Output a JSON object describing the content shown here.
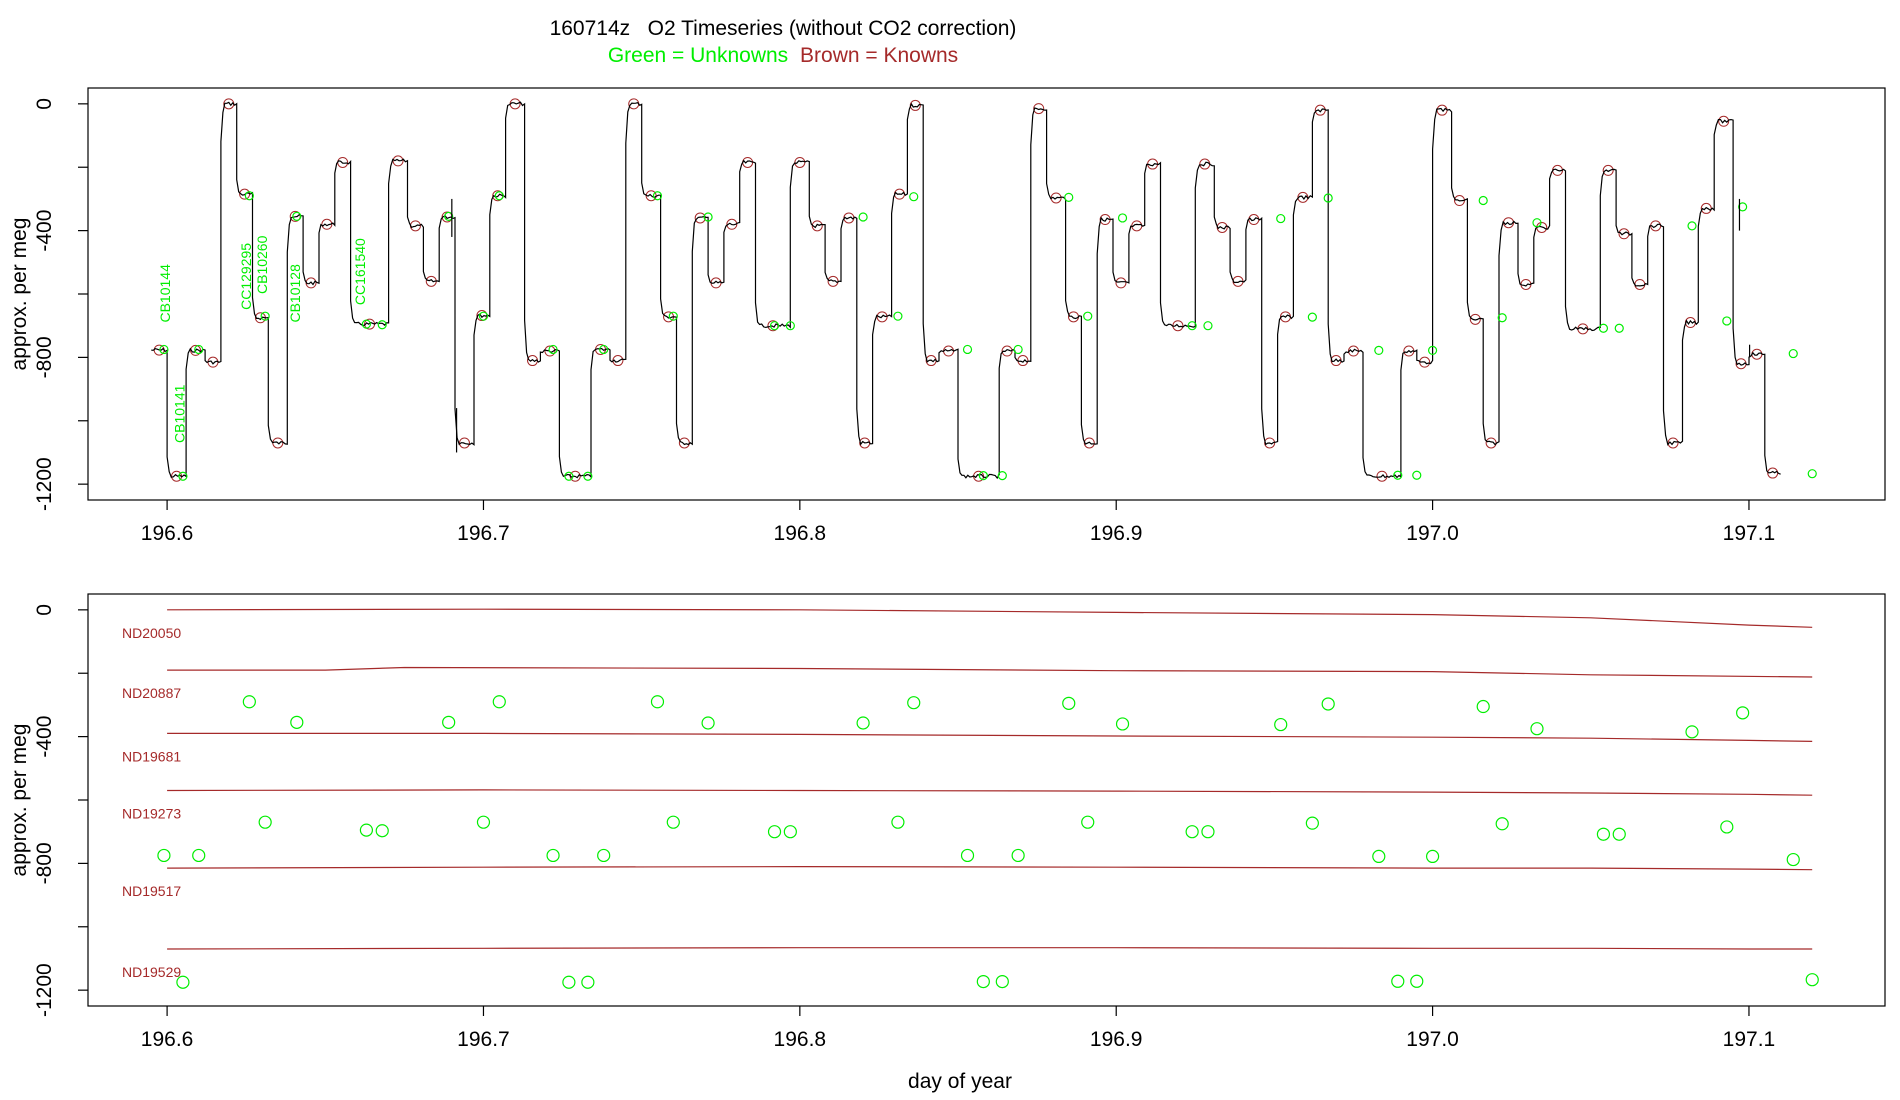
{
  "title": "160714z   O2 Timeseries (without CO2 correction)",
  "subtitle_green": "Green = Unknowns",
  "subtitle_brown": "Brown = Knowns",
  "colors": {
    "unknown": "#00ee00",
    "known": "#a52a2a",
    "trace": "#000000",
    "axis": "#000000"
  },
  "chart_data": [
    {
      "type": "line",
      "ylabel": "approx. per meg",
      "xlabel": "",
      "xlim": [
        196.575,
        197.143
      ],
      "ylim": [
        -1250,
        50
      ],
      "xticks": [
        "196.6",
        "196.7",
        "196.8",
        "196.9",
        "197.0",
        "197.1"
      ],
      "yticks": [
        "0",
        "-400",
        "-800",
        "-1200"
      ],
      "series": [
        {
          "steps": [
            [
              196.595,
              196.6,
              -777
            ],
            [
              196.6,
              196.606,
              -1175
            ],
            [
              196.606,
              196.612,
              -778
            ],
            [
              196.612,
              196.617,
              -815
            ],
            [
              196.617,
              196.622,
              0
            ],
            [
              196.622,
              196.627,
              -285
            ],
            [
              196.627,
              196.632,
              -675
            ],
            [
              196.632,
              196.638,
              -1070
            ],
            [
              196.638,
              196.643,
              -355
            ],
            [
              196.643,
              196.648,
              -565
            ],
            [
              196.648,
              196.653,
              -380
            ],
            [
              196.653,
              196.658,
              -185
            ],
            [
              196.658,
              196.67,
              -695
            ],
            [
              196.67,
              196.676,
              -180
            ],
            [
              196.676,
              196.681,
              -385
            ],
            [
              196.681,
              196.686,
              -560
            ],
            [
              196.686,
              196.691,
              -357
            ],
            [
              196.691,
              196.697,
              -1070
            ],
            [
              196.697,
              196.702,
              -668
            ],
            [
              196.702,
              196.707,
              -290
            ],
            [
              196.707,
              196.713,
              0
            ],
            [
              196.713,
              196.718,
              -810
            ],
            [
              196.718,
              196.724,
              -780
            ],
            [
              196.724,
              196.734,
              -1175
            ],
            [
              196.734,
              196.74,
              -775
            ],
            [
              196.74,
              196.745,
              -810
            ],
            [
              196.745,
              196.75,
              0
            ],
            [
              196.75,
              196.756,
              -290
            ],
            [
              196.756,
              196.761,
              -672
            ],
            [
              196.761,
              196.766,
              -1070
            ],
            [
              196.766,
              196.771,
              -360
            ],
            [
              196.771,
              196.776,
              -565
            ],
            [
              196.776,
              196.781,
              -380
            ],
            [
              196.781,
              196.786,
              -185
            ],
            [
              196.786,
              196.797,
              -700
            ],
            [
              196.797,
              196.803,
              -185
            ],
            [
              196.803,
              196.808,
              -385
            ],
            [
              196.808,
              196.813,
              -560
            ],
            [
              196.813,
              196.818,
              -360
            ],
            [
              196.818,
              196.823,
              -1070
            ],
            [
              196.823,
              196.829,
              -672
            ],
            [
              196.829,
              196.834,
              -285
            ],
            [
              196.834,
              196.839,
              -5
            ],
            [
              196.839,
              196.844,
              -810
            ],
            [
              196.844,
              196.85,
              -780
            ],
            [
              196.85,
              196.863,
              -1175
            ],
            [
              196.863,
              196.868,
              -780
            ],
            [
              196.868,
              196.873,
              -810
            ],
            [
              196.873,
              196.878,
              -15
            ],
            [
              196.878,
              196.884,
              -297
            ],
            [
              196.884,
              196.889,
              -672
            ],
            [
              196.889,
              196.894,
              -1070
            ],
            [
              196.894,
              196.899,
              -365
            ],
            [
              196.899,
              196.904,
              -565
            ],
            [
              196.904,
              196.909,
              -385
            ],
            [
              196.909,
              196.914,
              -190
            ],
            [
              196.914,
              196.925,
              -700
            ],
            [
              196.925,
              196.931,
              -190
            ],
            [
              196.931,
              196.936,
              -390
            ],
            [
              196.936,
              196.941,
              -560
            ],
            [
              196.941,
              196.946,
              -365
            ],
            [
              196.946,
              196.951,
              -1070
            ],
            [
              196.951,
              196.956,
              -672
            ],
            [
              196.956,
              196.962,
              -295
            ],
            [
              196.962,
              196.967,
              -20
            ],
            [
              196.967,
              196.972,
              -810
            ],
            [
              196.972,
              196.978,
              -780
            ],
            [
              196.978,
              196.99,
              -1175
            ],
            [
              196.99,
              196.995,
              -780
            ],
            [
              196.995,
              197.0,
              -815
            ],
            [
              197.0,
              197.006,
              -20
            ],
            [
              197.006,
              197.011,
              -305
            ],
            [
              197.011,
              197.016,
              -680
            ],
            [
              197.016,
              197.021,
              -1070
            ],
            [
              197.021,
              197.027,
              -375
            ],
            [
              197.027,
              197.032,
              -570
            ],
            [
              197.032,
              197.037,
              -390
            ],
            [
              197.037,
              197.042,
              -210
            ],
            [
              197.042,
              197.053,
              -710
            ],
            [
              197.053,
              197.058,
              -210
            ],
            [
              197.058,
              197.063,
              -410
            ],
            [
              197.063,
              197.068,
              -570
            ],
            [
              197.068,
              197.073,
              -385
            ],
            [
              197.073,
              197.079,
              -1070
            ],
            [
              197.079,
              197.084,
              -690
            ],
            [
              197.084,
              197.089,
              -330
            ],
            [
              197.089,
              197.095,
              -55
            ],
            [
              197.095,
              197.1,
              -820
            ],
            [
              197.1,
              197.105,
              -790
            ],
            [
              197.105,
              197.11,
              -1165
            ]
          ]
        }
      ],
      "annotations": [
        {
          "text": "CB10144",
          "x": 196.601,
          "y": -690
        },
        {
          "text": "CB10141",
          "x": 196.6055,
          "y": -1070
        },
        {
          "text": "CC129295",
          "x": 196.6265,
          "y": -650
        },
        {
          "text": "CB10260",
          "x": 196.6315,
          "y": -600
        },
        {
          "text": "CB10128",
          "x": 196.642,
          "y": -690
        },
        {
          "text": "CC161540",
          "x": 196.6625,
          "y": -635
        }
      ]
    },
    {
      "type": "scatter",
      "ylabel": "approx. per meg",
      "xlabel": "day of year",
      "xlim": [
        196.575,
        197.143
      ],
      "ylim": [
        -1250,
        50
      ],
      "xticks": [
        "196.6",
        "196.7",
        "196.8",
        "196.9",
        "197.0",
        "197.1"
      ],
      "yticks": [
        "0",
        "-400",
        "-800",
        "-1200"
      ],
      "known_lines": [
        {
          "name": "ND20050",
          "x": [
            196.6,
            196.7,
            196.8,
            196.9,
            197.0,
            197.05,
            197.1,
            197.12
          ],
          "y": [
            0,
            2,
            0,
            -8,
            -15,
            -25,
            -48,
            -55
          ]
        },
        {
          "name": "ND20887",
          "x": [
            196.6,
            196.65,
            196.675,
            196.8,
            196.9,
            197.0,
            197.05,
            197.12
          ],
          "y": [
            -190,
            -190,
            -182,
            -185,
            -192,
            -195,
            -205,
            -212
          ]
        },
        {
          "name": "ND19681",
          "x": [
            196.6,
            196.7,
            196.8,
            196.9,
            197.0,
            197.05,
            197.1,
            197.12
          ],
          "y": [
            -390,
            -390,
            -393,
            -398,
            -402,
            -405,
            -412,
            -415
          ]
        },
        {
          "name": "ND19273",
          "x": [
            196.6,
            196.7,
            196.8,
            196.9,
            197.0,
            197.05,
            197.1,
            197.12
          ],
          "y": [
            -570,
            -568,
            -570,
            -572,
            -575,
            -578,
            -582,
            -585
          ]
        },
        {
          "name": "ND19517",
          "x": [
            196.6,
            196.7,
            196.8,
            196.9,
            197.0,
            197.05,
            197.1,
            197.12
          ],
          "y": [
            -815,
            -812,
            -810,
            -812,
            -815,
            -815,
            -818,
            -820
          ]
        },
        {
          "name": "ND19529",
          "x": [
            196.6,
            196.7,
            196.8,
            196.9,
            197.0,
            197.05,
            197.1,
            197.12
          ],
          "y": [
            -1070,
            -1068,
            -1066,
            -1066,
            -1068,
            -1068,
            -1070,
            -1070
          ]
        }
      ],
      "unknowns": {
        "x": [
          196.599,
          196.605,
          196.61,
          196.626,
          196.631,
          196.641,
          196.663,
          196.668,
          196.689,
          196.7,
          196.705,
          196.722,
          196.727,
          196.733,
          196.738,
          196.755,
          196.76,
          196.771,
          196.792,
          196.797,
          196.82,
          196.831,
          196.836,
          196.853,
          196.858,
          196.864,
          196.869,
          196.885,
          196.891,
          196.902,
          196.924,
          196.929,
          196.952,
          196.962,
          196.967,
          196.983,
          196.989,
          196.995,
          197.0,
          197.016,
          197.022,
          197.033,
          197.054,
          197.059,
          197.082,
          197.093,
          197.098,
          197.114,
          197.12
        ],
        "y": [
          -775,
          -1175,
          -775,
          -290,
          -670,
          -355,
          -695,
          -697,
          -355,
          -670,
          -290,
          -775,
          -1175,
          -1175,
          -775,
          -290,
          -670,
          -357,
          -700,
          -700,
          -357,
          -670,
          -293,
          -775,
          -1173,
          -1173,
          -775,
          -295,
          -670,
          -360,
          -700,
          -700,
          -362,
          -673,
          -297,
          -778,
          -1172,
          -1172,
          -778,
          -305,
          -675,
          -375,
          -708,
          -708,
          -385,
          -685,
          -325,
          -788,
          -1167
        ]
      }
    }
  ]
}
